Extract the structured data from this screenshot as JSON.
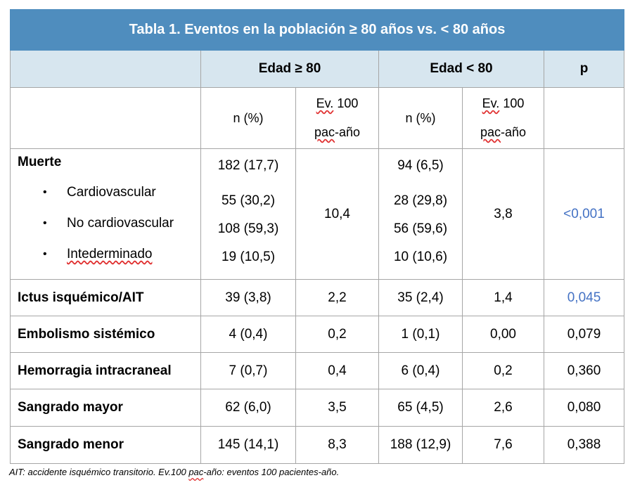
{
  "table": {
    "title": "Tabla 1. Eventos en la población ≥ 80 años vs. < 80 años",
    "group_headers": {
      "age_ge80": "Edad ≥ 80",
      "age_lt80": "Edad < 80",
      "p": "p"
    },
    "sub_headers": {
      "n_pct": "n (%)",
      "ev_line1": "Ev.",
      "ev_line1_rest": " 100",
      "ev_line2": "pac",
      "ev_line2_rest": "-año"
    },
    "muerte": {
      "label": "Muerte",
      "sub_labels": [
        "Cardiovascular",
        "No cardiovascular",
        "Intederminado"
      ],
      "ge80_n": [
        "182 (17,7)",
        "55 (30,2)",
        "108 (59,3)",
        "19 (10,5)"
      ],
      "ge80_ev": "10,4",
      "lt80_n": [
        "94 (6,5)",
        "28 (29,8)",
        "56 (59,6)",
        "10 (10,6)"
      ],
      "lt80_ev": "3,8",
      "p": "<0,001"
    },
    "rows": [
      {
        "label": "Ictus isquémico/AIT",
        "ge80_n": "39 (3,8)",
        "ge80_ev": "2,2",
        "lt80_n": "35 (2,4)",
        "lt80_ev": "1,4",
        "p": "0,045"
      },
      {
        "label": "Embolismo sistémico",
        "ge80_n": "4 (0,4)",
        "ge80_ev": "0,2",
        "lt80_n": "1 (0,1)",
        "lt80_ev": "0,00",
        "p": "0,079"
      },
      {
        "label": "Hemorragia intracraneal",
        "ge80_n": "7 (0,7)",
        "ge80_ev": "0,4",
        "lt80_n": "6 (0,4)",
        "lt80_ev": "0,2",
        "p": "0,360"
      },
      {
        "label": "Sangrado mayor",
        "ge80_n": "62 (6,0)",
        "ge80_ev": "3,5",
        "lt80_n": "65 (4,5)",
        "lt80_ev": "2,6",
        "p": "0,080"
      },
      {
        "label": "Sangrado menor",
        "ge80_n": "145 (14,1)",
        "ge80_ev": "8,3",
        "lt80_n": "188 (12,9)",
        "lt80_ev": "7,6",
        "p": "0,388"
      }
    ],
    "bullet_glyph": "•"
  },
  "footnote": {
    "part1": "AIT: accidente isquémico transitorio. Ev.100 ",
    "squiggle": "pac",
    "part2": "-año: eventos 100 pacientes-año."
  },
  "colors": {
    "title_bg": "#4f8dbe",
    "header_bg": "#d7e6ef",
    "p_highlight": "#4472c4"
  }
}
